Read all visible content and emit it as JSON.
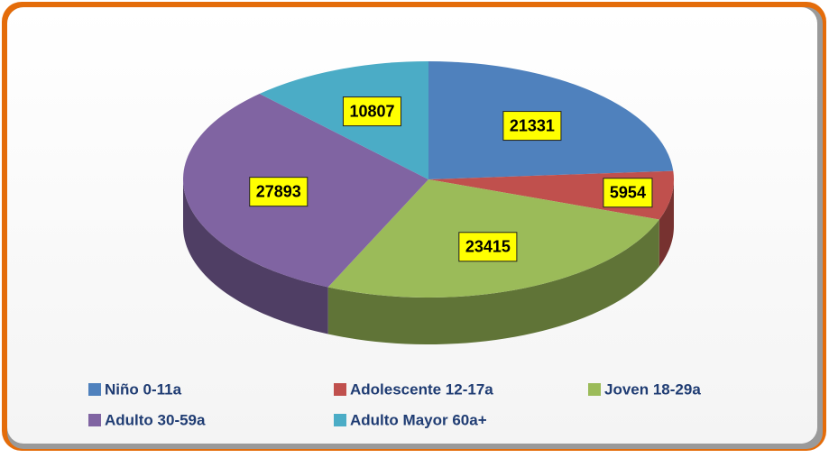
{
  "chart_data": {
    "type": "pie",
    "style": "3d",
    "categories": [
      "Niño 0-11a",
      "Adolescente 12-17a",
      "Joven 18-29a",
      "Adulto 30-59a",
      "Adulto Mayor 60a+"
    ],
    "values": [
      21331,
      5954,
      23415,
      27893,
      10807
    ],
    "colors": [
      "#4f81bd",
      "#c0504d",
      "#9bbb59",
      "#8064a2",
      "#4bacc6"
    ],
    "legend": "bottom"
  }
}
